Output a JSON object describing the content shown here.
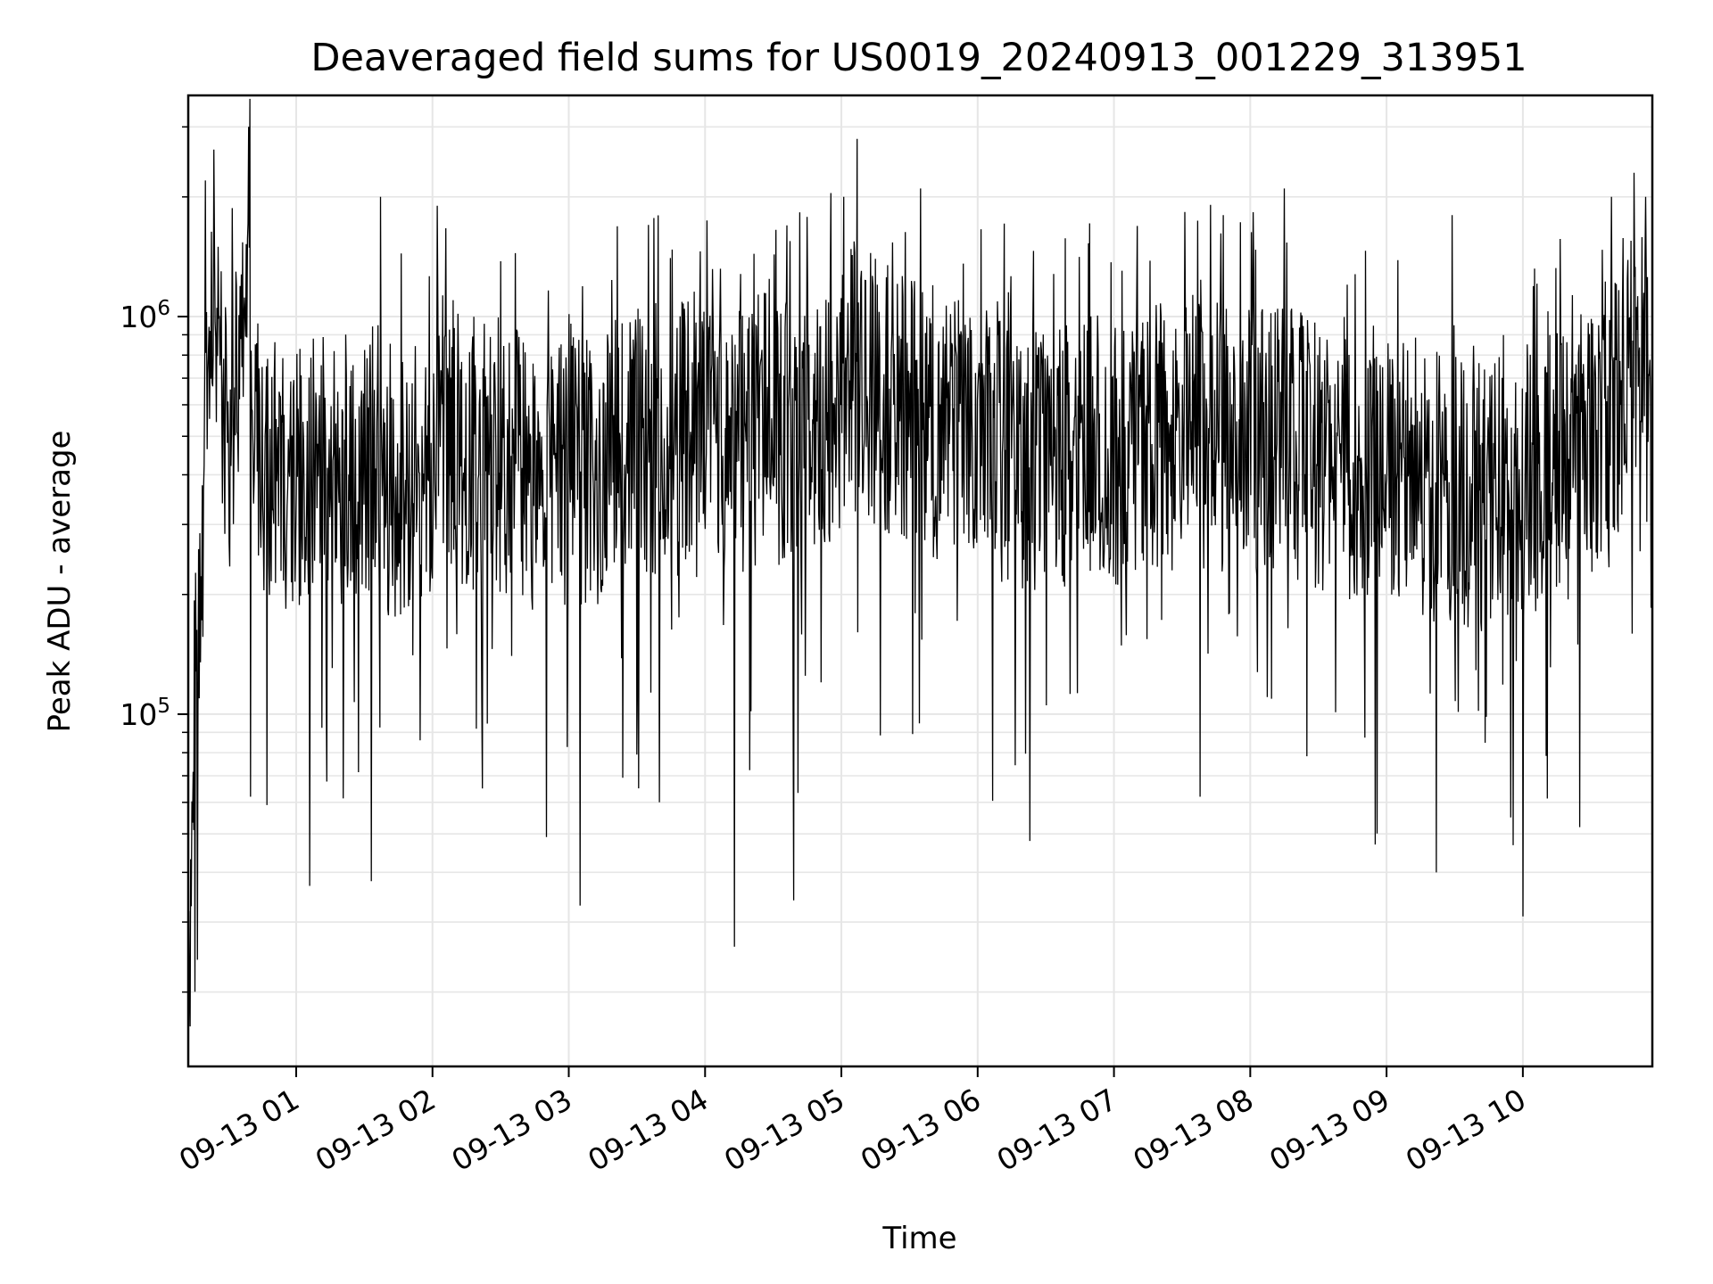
{
  "chart_data": {
    "type": "line",
    "title": "Deaveraged field sums for US0019_20240913_001229_313951",
    "xlabel": "Time",
    "ylabel": "Peak ADU - average",
    "x_type": "time",
    "xlim": [
      "2024-09-13 00:12:29",
      "2024-09-13 10:57:00"
    ],
    "x_ticks": [
      "2024-09-13 01:00",
      "2024-09-13 02:00",
      "2024-09-13 03:00",
      "2024-09-13 04:00",
      "2024-09-13 05:00",
      "2024-09-13 06:00",
      "2024-09-13 07:00",
      "2024-09-13 08:00",
      "2024-09-13 09:00",
      "2024-09-13 10:00"
    ],
    "x_tick_labels": [
      "09-13 01",
      "09-13 02",
      "09-13 03",
      "09-13 04",
      "09-13 05",
      "09-13 06",
      "09-13 07",
      "09-13 08",
      "09-13 09",
      "09-13 10"
    ],
    "y_scale": "log",
    "ylim": [
      13000,
      3600000
    ],
    "y_ticks": [
      100000,
      1000000
    ],
    "y_tick_labels": [
      {
        "base": "10",
        "exp": "5"
      },
      {
        "base": "10",
        "exp": "6"
      }
    ],
    "grid": true,
    "line_color": "#000000",
    "grid_color": "#e6e6e6",
    "series": [
      {
        "x": [
          "2024-09-13 00:12:29",
          "2024-09-13 00:14:00",
          "2024-09-13 00:16:00",
          "2024-09-13 00:18:00",
          "2024-09-13 00:20:00",
          "2024-09-13 00:22:00",
          "2024-09-13 00:24:00",
          "2024-09-13 00:26:00",
          "2024-09-13 00:28:00",
          "2024-09-13 00:30:00",
          "2024-09-13 00:32:00",
          "2024-09-13 00:34:00",
          "2024-09-13 00:36:00",
          "2024-09-13 00:38:00",
          "2024-09-13 00:40:00",
          "2024-09-13 00:42:00",
          "2024-09-13 00:44:00",
          "2024-09-13 00:46:00",
          "2024-09-13 00:48:00",
          "2024-09-13 00:50:00",
          "2024-09-13 00:55:00",
          "2024-09-13 01:04:00",
          "2024-09-13 01:15:00",
          "2024-09-13 01:25:00",
          "2024-09-13 01:35:00",
          "2024-09-13 01:42:00",
          "2024-09-13 01:48:00",
          "2024-09-13 01:55:00",
          "2024-09-13 02:05:00",
          "2024-09-13 02:15:00",
          "2024-09-13 02:30:00",
          "2024-09-13 02:45:00",
          "2024-09-13 03:00:00",
          "2024-09-13 03:15:00",
          "2024-09-13 03:30:00",
          "2024-09-13 03:45:00",
          "2024-09-13 04:00:00",
          "2024-09-13 04:12:00",
          "2024-09-13 04:25:00",
          "2024-09-13 04:40:00",
          "2024-09-13 04:55:00",
          "2024-09-13 05:06:00",
          "2024-09-13 05:20:00",
          "2024-09-13 05:35:00",
          "2024-09-13 05:50:00",
          "2024-09-13 06:05:00",
          "2024-09-13 06:20:00",
          "2024-09-13 06:35:00",
          "2024-09-13 06:50:00",
          "2024-09-13 07:05:00",
          "2024-09-13 07:20:00",
          "2024-09-13 07:35:00",
          "2024-09-13 07:50:00",
          "2024-09-13 08:05:00",
          "2024-09-13 08:20:00",
          "2024-09-13 08:35:00",
          "2024-09-13 08:50:00",
          "2024-09-13 09:05:00",
          "2024-09-13 09:20:00",
          "2024-09-13 09:35:00",
          "2024-09-13 09:50:00",
          "2024-09-13 10:05:00",
          "2024-09-13 10:20:00",
          "2024-09-13 10:35:00",
          "2024-09-13 10:45:00",
          "2024-09-13 10:52:00",
          "2024-09-13 10:57:00"
        ],
        "y": [
          17000,
          50000,
          120000,
          200000,
          400000,
          900000,
          1500000,
          700000,
          500000,
          450000,
          600000,
          800000,
          1100000,
          1400000,
          1000000,
          500000,
          420000,
          400000,
          380000,
          420000,
          400000,
          380000,
          420000,
          400000,
          450000,
          380000,
          400000,
          420000,
          500000,
          450000,
          450000,
          380000,
          400000,
          420000,
          480000,
          500000,
          480000,
          460000,
          520000,
          500000,
          560000,
          700000,
          620000,
          560000,
          520000,
          480000,
          450000,
          420000,
          460000,
          470000,
          500000,
          520000,
          500000,
          480000,
          470000,
          440000,
          420000,
          400000,
          380000,
          350000,
          360000,
          400000,
          430000,
          460000,
          650000,
          800000,
          300000
        ]
      }
    ],
    "series_min": {
      "x": [
        "2024-09-13 00:20:00",
        "2024-09-13 00:40:00",
        "2024-09-13 01:06:00",
        "2024-09-13 01:33:00",
        "2024-09-13 02:22:00",
        "2024-09-13 03:05:00",
        "2024-09-13 03:40:00",
        "2024-09-13 04:13:00",
        "2024-09-13 04:39:00",
        "2024-09-13 06:23:00",
        "2024-09-13 07:38:00",
        "2024-09-13 08:55:00",
        "2024-09-13 09:22:00",
        "2024-09-13 10:00:00",
        "2024-09-13 10:25:00"
      ],
      "y": [
        35000,
        62000,
        37000,
        38000,
        65000,
        33000,
        60000,
        26000,
        34000,
        48000,
        62000,
        47000,
        40000,
        31000,
        52000
      ]
    },
    "series_max": {
      "x": [
        "2024-09-13 00:20:00",
        "2024-09-13 00:39:00",
        "2024-09-13 01:37:00",
        "2024-09-13 02:02:00",
        "2024-09-13 03:35:00",
        "2024-09-13 05:01:00",
        "2024-09-13 05:07:00",
        "2024-09-13 05:35:00",
        "2024-09-13 07:48:00",
        "2024-09-13 08:15:00",
        "2024-09-13 09:29:00",
        "2024-09-13 10:39:00",
        "2024-09-13 10:49:00",
        "2024-09-13 10:54:00"
      ],
      "y": [
        2200000,
        3000000,
        2000000,
        1900000,
        1700000,
        2000000,
        2800000,
        2100000,
        1800000,
        2100000,
        1800000,
        2000000,
        2300000,
        2000000
      ]
    }
  }
}
